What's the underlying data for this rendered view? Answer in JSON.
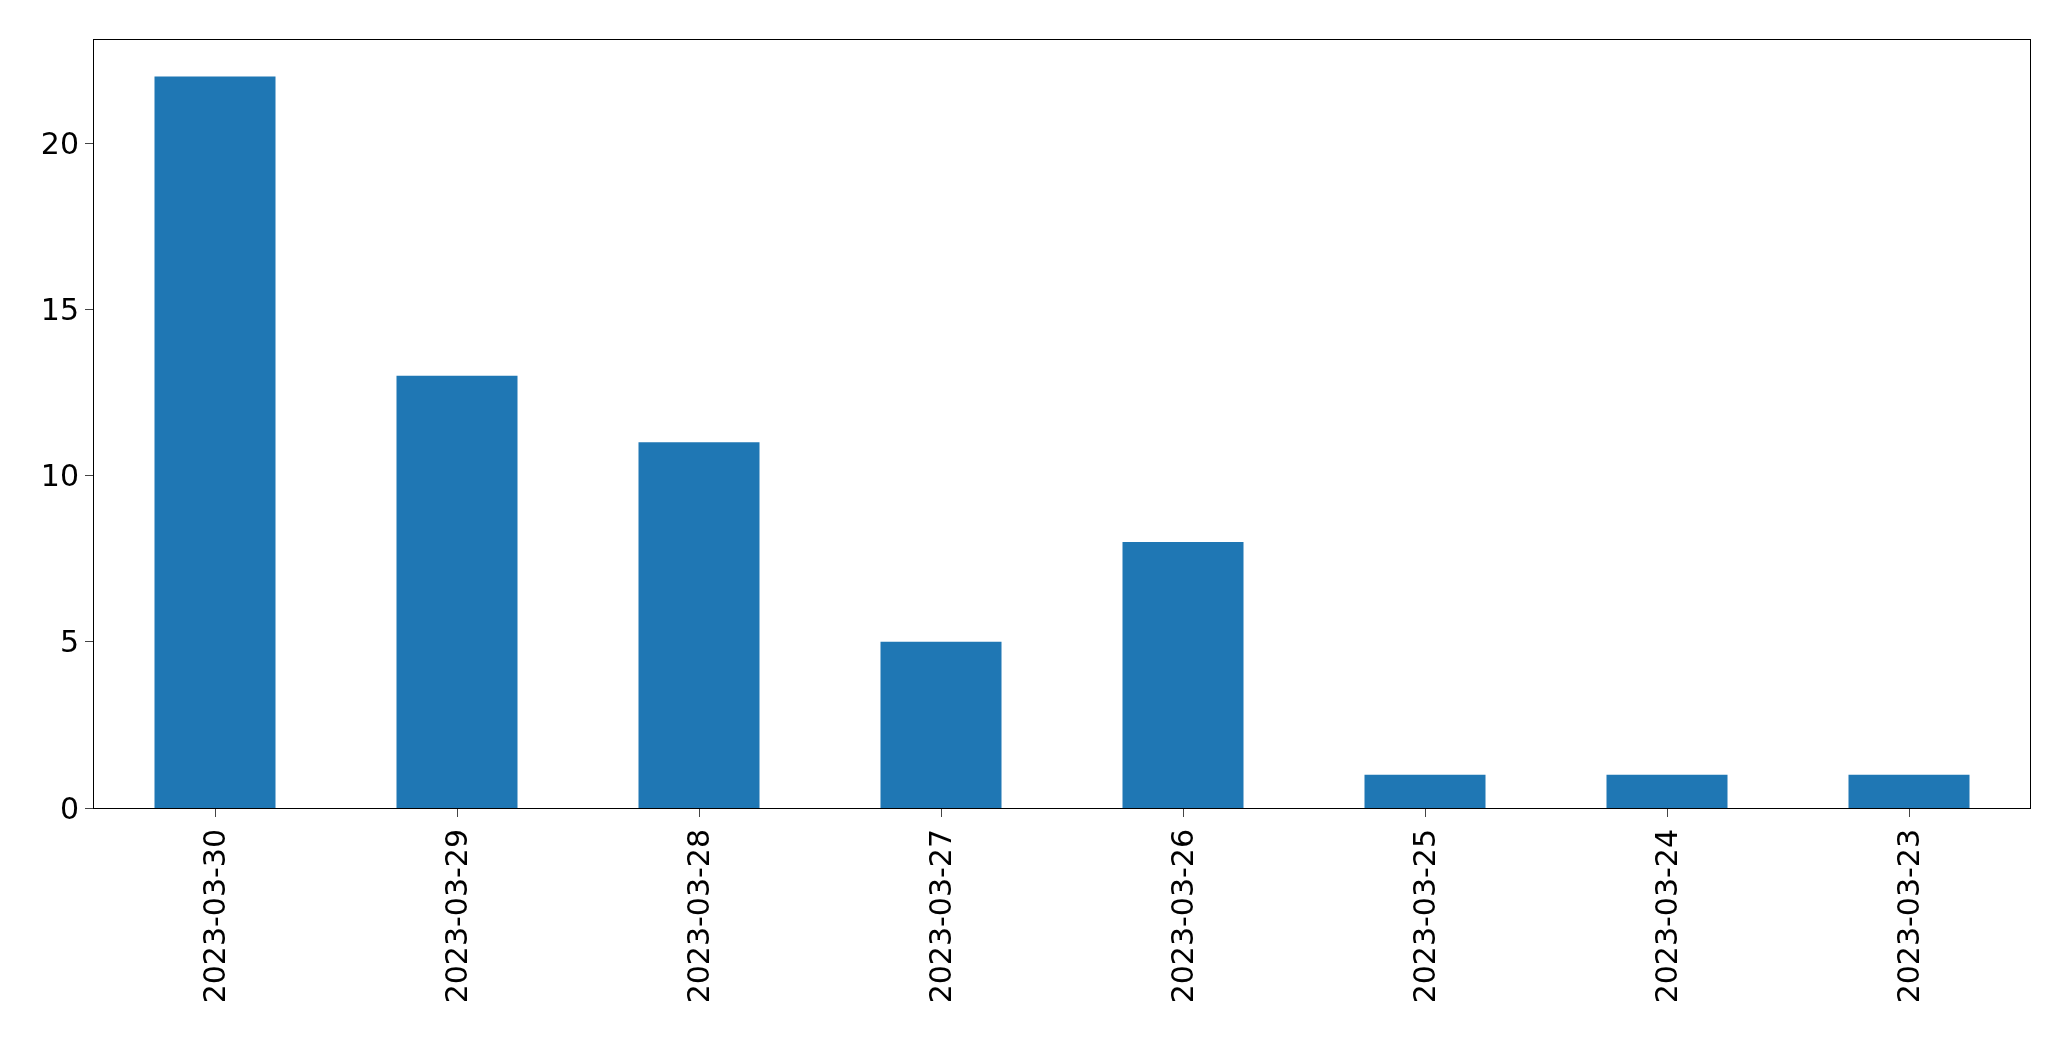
{
  "chart_data": {
    "type": "bar",
    "categories": [
      "2023-03-30",
      "2023-03-29",
      "2023-03-28",
      "2023-03-27",
      "2023-03-26",
      "2023-03-25",
      "2023-03-24",
      "2023-03-23"
    ],
    "values": [
      22,
      13,
      11,
      5,
      8,
      1,
      1,
      1
    ],
    "color": "#1f77b4",
    "ylim": [
      0,
      23.1
    ],
    "yticks": [
      0,
      5,
      10,
      15,
      20
    ]
  }
}
